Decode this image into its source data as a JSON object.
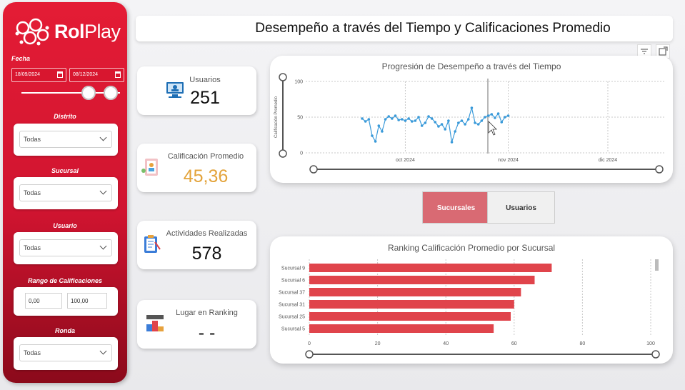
{
  "brand": {
    "part1": "Rol",
    "part2": "Play"
  },
  "filters": {
    "fecha_label": "Fecha",
    "date_from": "18/09/2024",
    "date_to": "08/12/2024",
    "distrito_label": "Distrito",
    "distrito_value": "Todas",
    "sucursal_label": "Sucursal",
    "sucursal_value": "Todas",
    "usuario_label": "Usuario",
    "usuario_value": "Todas",
    "rango_label": "Rango de Calificaciones",
    "rango_min": "0,00",
    "rango_max": "100,00",
    "ronda_label": "Ronda",
    "ronda_value": "Todas"
  },
  "header": {
    "title": "Desempeño a través del Tiempo y Calificaciones Promedio"
  },
  "kpis": [
    {
      "label": "Usuarios",
      "value": "251",
      "icon": "monitor-users-icon"
    },
    {
      "label": "Calificación Promedio",
      "value": "45,36",
      "icon": "rating-profile-icon",
      "color": "#e3a33a"
    },
    {
      "label": "Actividades Realizadas",
      "value": "578",
      "icon": "clipboard-icon"
    },
    {
      "label": "Lugar en Ranking",
      "value": "- -",
      "icon": "podium-icon"
    }
  ],
  "toggles": {
    "sucursales": "Sucursales",
    "usuarios": "Usuarios",
    "active": "Sucursales"
  },
  "colors": {
    "accent": "#e41c35",
    "bar": "#e0444b",
    "line": "#3a9ad9",
    "kpi_highlight": "#e3a33a"
  },
  "chart_data": [
    {
      "type": "line",
      "title": "Progresión de Desempeño a través del Tiempo",
      "ylabel": "Calificación Promedio",
      "xlabel": "",
      "ylim": [
        0,
        100
      ],
      "yticks": [
        0,
        50,
        100
      ],
      "xticks": [
        "oct 2024",
        "nov 2024",
        "dic 2024"
      ],
      "xrange": [
        "2024-09-01",
        "2024-12-18"
      ],
      "grid": true,
      "x": [
        "2024-09-18",
        "2024-09-19",
        "2024-09-20",
        "2024-09-21",
        "2024-09-22",
        "2024-09-23",
        "2024-09-24",
        "2024-09-25",
        "2024-09-26",
        "2024-09-27",
        "2024-09-28",
        "2024-09-29",
        "2024-09-30",
        "2024-10-01",
        "2024-10-02",
        "2024-10-03",
        "2024-10-04",
        "2024-10-05",
        "2024-10-06",
        "2024-10-07",
        "2024-10-08",
        "2024-10-09",
        "2024-10-10",
        "2024-10-11",
        "2024-10-12",
        "2024-10-13",
        "2024-10-14",
        "2024-10-15",
        "2024-10-16",
        "2024-10-17",
        "2024-10-18",
        "2024-10-19",
        "2024-10-20",
        "2024-10-21",
        "2024-10-22",
        "2024-10-23",
        "2024-10-24",
        "2024-10-25",
        "2024-10-26",
        "2024-10-27",
        "2024-10-28",
        "2024-10-29",
        "2024-10-30",
        "2024-10-31",
        "2024-11-01"
      ],
      "series": [
        {
          "values": [
            48,
            44,
            47,
            24,
            16,
            38,
            30,
            47,
            51,
            48,
            52,
            46,
            47,
            45,
            48,
            44,
            45,
            50,
            38,
            42,
            51,
            48,
            43,
            37,
            40,
            33,
            45,
            15,
            30,
            42,
            45,
            40,
            47,
            63,
            42,
            40,
            45,
            50,
            52,
            54,
            49,
            55,
            43,
            50,
            52
          ]
        }
      ]
    },
    {
      "type": "bar",
      "orientation": "horizontal",
      "title": "Ranking Calificación Promedio por Sucursal",
      "categories": [
        "Sucursal 9",
        "Sucursal 6",
        "Sucursal 37",
        "Sucursal 31",
        "Sucursal 25",
        "Sucursal 5"
      ],
      "values": [
        71,
        66,
        62,
        60,
        59,
        54
      ],
      "xlim": [
        0,
        100
      ],
      "xticks": [
        0,
        20,
        40,
        60,
        80,
        100
      ],
      "grid": true
    }
  ]
}
